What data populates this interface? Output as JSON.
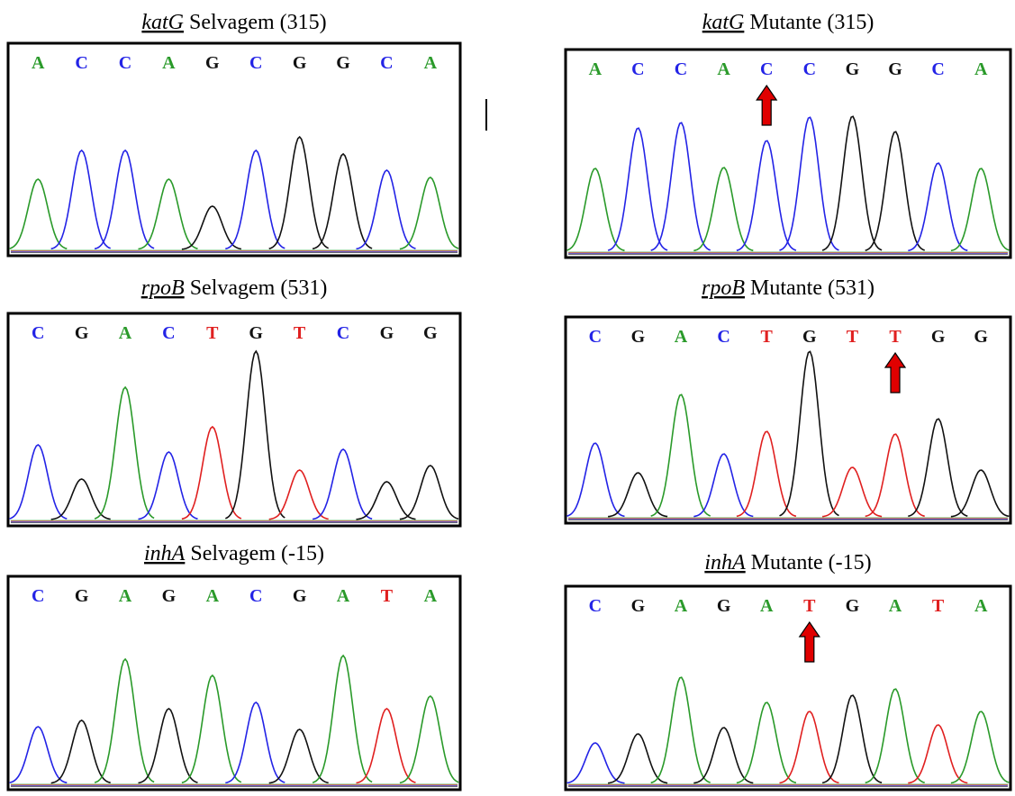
{
  "panels": [
    {
      "title": {
        "gene": "katG",
        "rest": "Selvagem (315)"
      },
      "bases": [
        "A",
        "C",
        "C",
        "A",
        "G",
        "C",
        "G",
        "G",
        "C",
        "A"
      ]
    },
    {
      "title": {
        "gene": "katG",
        "rest": "Mutante (315)"
      },
      "bases": [
        "A",
        "C",
        "C",
        "A",
        "C",
        "C",
        "G",
        "G",
        "C",
        "A"
      ]
    },
    {
      "title": {
        "gene": "rpoB",
        "rest": "Selvagem (531)"
      },
      "bases": [
        "C",
        "G",
        "A",
        "C",
        "T",
        "G",
        "T",
        "C",
        "G",
        "G"
      ]
    },
    {
      "title": {
        "gene": "rpoB",
        "rest": "Mutante (531)"
      },
      "bases": [
        "C",
        "G",
        "A",
        "C",
        "T",
        "G",
        "T",
        "T",
        "G",
        "G"
      ]
    },
    {
      "title": {
        "gene": "inhA",
        "rest": "Selvagem (-15)"
      },
      "bases": [
        "C",
        "G",
        "A",
        "G",
        "A",
        "C",
        "G",
        "A",
        "T",
        "A"
      ]
    },
    {
      "title": {
        "gene": "inhA",
        "rest": "Mutante (-15)"
      },
      "bases": [
        "C",
        "G",
        "A",
        "G",
        "A",
        "T",
        "G",
        "A",
        "T",
        "A"
      ]
    }
  ]
}
